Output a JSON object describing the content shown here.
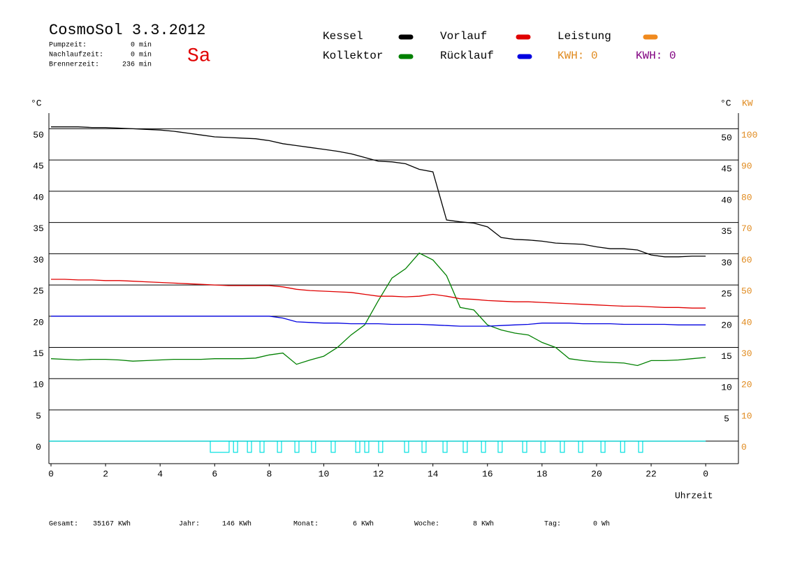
{
  "header": {
    "title": "CosmoSol 3.3.2012",
    "day": "Sa",
    "info": [
      {
        "label": "Pumpzeit:",
        "value": "0 min"
      },
      {
        "label": "Nachlaufzeit:",
        "value": "0 min"
      },
      {
        "label": "Brennerzeit:",
        "value": "236 min"
      }
    ],
    "kwh": [
      {
        "text": "KWH: 0",
        "color": "#e08a1e"
      },
      {
        "text": "KWH: 0",
        "color": "#800080"
      }
    ]
  },
  "chart_data": {
    "type": "line",
    "y_label": "°C",
    "y2_label_left": "°C",
    "y2_label": "KW",
    "x_label": "Uhrzeit",
    "x": [
      0,
      0.5,
      1,
      1.5,
      2,
      2.5,
      3,
      3.5,
      4,
      4.5,
      5,
      5.5,
      6,
      6.5,
      7,
      7.5,
      8,
      8.5,
      9,
      9.5,
      10,
      10.5,
      11,
      11.5,
      12,
      12.5,
      13,
      13.5,
      14,
      14.5,
      15,
      15.5,
      16,
      16.5,
      17,
      17.5,
      18,
      18.5,
      19,
      19.5,
      20,
      20.5,
      21,
      21.5,
      22,
      22.5,
      23,
      23.5,
      24
    ],
    "series": [
      {
        "name": "Kessel",
        "color": "#000000",
        "values": [
          50.3,
          50.3,
          50.3,
          50.2,
          50.2,
          50.1,
          50.0,
          49.9,
          49.8,
          49.6,
          49.3,
          49.0,
          48.7,
          48.6,
          48.5,
          48.4,
          48.1,
          47.6,
          47.3,
          47.0,
          46.7,
          46.4,
          46.0,
          45.4,
          44.8,
          44.7,
          44.4,
          43.5,
          43.1,
          35.4,
          35.1,
          34.9,
          34.3,
          32.6,
          32.3,
          32.2,
          32.0,
          31.7,
          31.6,
          31.5,
          31.1,
          30.8,
          30.8,
          30.6,
          29.8,
          29.5,
          29.5,
          29.6,
          29.6
        ]
      },
      {
        "name": "Kollektor",
        "color": "#008000",
        "values": [
          13.2,
          13.1,
          13.0,
          13.1,
          13.1,
          13.0,
          12.8,
          12.9,
          13.0,
          13.1,
          13.1,
          13.1,
          13.2,
          13.2,
          13.2,
          13.3,
          13.8,
          14.1,
          12.3,
          13.0,
          13.6,
          15.0,
          17.0,
          18.6,
          22.5,
          26.1,
          27.6,
          30.1,
          29.0,
          26.5,
          21.4,
          21.0,
          18.6,
          17.8,
          17.3,
          17.0,
          15.8,
          15.0,
          13.2,
          12.9,
          12.7,
          12.6,
          12.5,
          12.1,
          12.9,
          12.9,
          13.0,
          13.2,
          13.4
        ]
      },
      {
        "name": "Vorlauf",
        "color": "#e00000",
        "values": [
          25.9,
          25.9,
          25.8,
          25.8,
          25.7,
          25.7,
          25.6,
          25.5,
          25.4,
          25.3,
          25.2,
          25.1,
          25.0,
          24.9,
          24.9,
          24.9,
          24.9,
          24.7,
          24.3,
          24.1,
          24.0,
          23.9,
          23.8,
          23.5,
          23.2,
          23.2,
          23.1,
          23.2,
          23.5,
          23.2,
          22.8,
          22.7,
          22.5,
          22.4,
          22.3,
          22.3,
          22.2,
          22.1,
          22.0,
          21.9,
          21.8,
          21.7,
          21.6,
          21.6,
          21.5,
          21.4,
          21.4,
          21.3,
          21.3
        ]
      },
      {
        "name": "Rücklauf",
        "color": "#0000e0",
        "values": [
          20.0,
          20.0,
          20.0,
          20.0,
          20.0,
          20.0,
          20.0,
          20.0,
          20.0,
          20.0,
          20.0,
          20.0,
          20.0,
          20.0,
          20.0,
          20.0,
          20.0,
          19.7,
          19.1,
          19.0,
          18.9,
          18.9,
          18.8,
          18.8,
          18.8,
          18.7,
          18.7,
          18.7,
          18.6,
          18.5,
          18.4,
          18.4,
          18.4,
          18.5,
          18.6,
          18.7,
          18.9,
          18.9,
          18.9,
          18.8,
          18.8,
          18.8,
          18.7,
          18.7,
          18.7,
          18.7,
          18.6,
          18.6,
          18.6
        ]
      },
      {
        "name": "Leistung",
        "color": "#f08a1e",
        "axis": "y2"
      }
    ],
    "pump_color": "#00e0e0",
    "pump_intervals": [
      [
        5.84,
        6.53
      ],
      [
        6.69,
        6.84
      ],
      [
        7.2,
        7.35
      ],
      [
        7.66,
        7.81
      ],
      [
        8.3,
        8.45
      ],
      [
        8.94,
        9.09
      ],
      [
        9.55,
        9.7
      ],
      [
        10.27,
        10.42
      ],
      [
        11.17,
        11.32
      ],
      [
        11.5,
        11.65
      ],
      [
        12.01,
        12.16
      ],
      [
        12.96,
        13.11
      ],
      [
        13.6,
        13.75
      ],
      [
        14.37,
        14.52
      ],
      [
        15.11,
        15.26
      ],
      [
        15.78,
        15.93
      ],
      [
        16.39,
        16.54
      ],
      [
        17.29,
        17.44
      ],
      [
        17.96,
        18.11
      ],
      [
        18.67,
        18.82
      ],
      [
        19.34,
        19.49
      ],
      [
        20.16,
        20.31
      ],
      [
        20.88,
        21.03
      ],
      [
        21.54,
        21.69
      ]
    ],
    "xlim": [
      0,
      25.2
    ],
    "xticks": [
      0,
      2,
      4,
      6,
      8,
      10,
      12,
      14,
      16,
      18,
      20,
      22,
      {
        "value": 24,
        "label": "0"
      }
    ],
    "ylim": [
      -3.6,
      52.5
    ],
    "yticks": [
      0,
      5,
      10,
      15,
      20,
      25,
      30,
      35,
      40,
      45,
      50
    ],
    "yticks_right": [
      5,
      10,
      15,
      20,
      25,
      30,
      35,
      40,
      45,
      50
    ],
    "y2lim": [
      -7.2,
      105
    ],
    "y2ticks": [
      0,
      10,
      20,
      30,
      40,
      50,
      60,
      70,
      80,
      90,
      100
    ],
    "y2_color": "#e08a1e",
    "grid": true
  },
  "footer": [
    {
      "label": "Gesamt:",
      "value": "35167 KWh"
    },
    {
      "label": "Jahr:",
      "value": "146 KWh"
    },
    {
      "label": "Monat:",
      "value": "6 KWh"
    },
    {
      "label": "Woche:",
      "value": "8 KWh"
    },
    {
      "label": "Tag:",
      "value": "0 Wh"
    }
  ]
}
